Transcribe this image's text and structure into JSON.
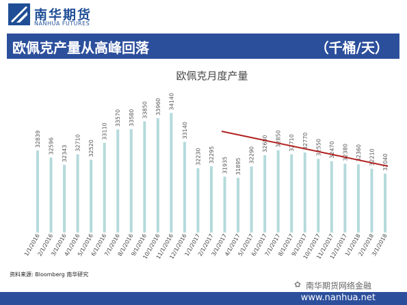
{
  "brand": {
    "name_cn": "南华期货",
    "name_en": "NANHUA FUTURES",
    "color": "#1f4e96"
  },
  "banner": {
    "title": "欧佩克产量从高峰回落",
    "unit": "（千桶/天）",
    "bg": "#2c4f9c"
  },
  "source": "资料来源: Bloomberg  南华研究",
  "watermark": "南华期货网络金融",
  "footer": {
    "url": "www.nanhua.net"
  },
  "chart_data": {
    "type": "bar",
    "title": "欧佩克月度产量",
    "xlabel": "",
    "ylabel": "",
    "ylim": [
      30000,
      34500
    ],
    "grid": false,
    "bar_color": "#b5dadc",
    "trend_color": "#b22222",
    "categories": [
      "1/1/2016",
      "2/1/2016",
      "3/1/2016",
      "4/1/2016",
      "5/1/2016",
      "6/1/2016",
      "7/1/2016",
      "8/1/2016",
      "9/1/2016",
      "10/1/2016",
      "11/1/2016",
      "12/1/2016",
      "1/1/2017",
      "2/1/2017",
      "3/1/2017",
      "4/1/2017",
      "5/1/2017",
      "6/1/2017",
      "7/1/2017",
      "8/1/2017",
      "9/1/2017",
      "10/1/2017",
      "11/1/2017",
      "12/1/2017",
      "1/1/2018",
      "2/1/2018",
      "3/1/2018"
    ],
    "values": [
      32839,
      32596,
      32343,
      32710,
      32520,
      33110,
      33570,
      33580,
      33850,
      33960,
      34140,
      33140,
      32230,
      32295,
      31935,
      31895,
      32290,
      32680,
      32850,
      32710,
      32770,
      32550,
      32470,
      32380,
      32360,
      32210,
      32040
    ],
    "labels": [
      "32839",
      "32596",
      "32343",
      "32710",
      "32520",
      "33110",
      "33570",
      "33580",
      "33850",
      "33960",
      "34140",
      "33140",
      "32230",
      "32295",
      "31935",
      "31895",
      "32290",
      "32680",
      "32850",
      "32710",
      "32770",
      "32550",
      "32470",
      "32380",
      "32360",
      "32210",
      "32040"
    ],
    "trendline": {
      "from_category": "2/1/2017",
      "to_category": "3/1/2018"
    }
  }
}
